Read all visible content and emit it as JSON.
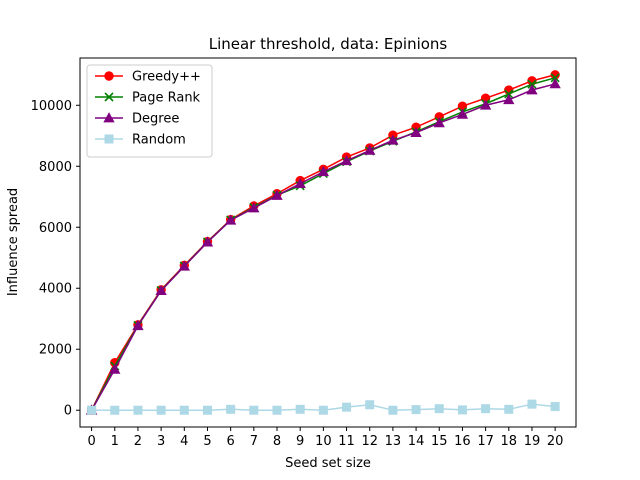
{
  "chart_data": {
    "type": "line",
    "title": "Linear threshold, data: Epinions",
    "xlabel": "Seed set size",
    "ylabel": "Influence spread",
    "x": [
      0,
      1,
      2,
      3,
      4,
      5,
      6,
      7,
      8,
      9,
      10,
      11,
      12,
      13,
      14,
      15,
      16,
      17,
      18,
      19,
      20
    ],
    "xlim": [
      -0.5,
      20.9
    ],
    "ylim": [
      -550,
      11550
    ],
    "yticks": [
      0,
      2000,
      4000,
      6000,
      8000,
      10000
    ],
    "grid": false,
    "legend_position": "top-left",
    "series": [
      {
        "name": "Greedy++",
        "color": "#ff0000",
        "marker": "circle",
        "values": [
          0,
          1560,
          2800,
          3950,
          4750,
          5530,
          6250,
          6700,
          7100,
          7530,
          7900,
          8300,
          8600,
          9020,
          9280,
          9620,
          9970,
          10230,
          10500,
          10800,
          11000
        ]
      },
      {
        "name": "Page Rank",
        "color": "#008000",
        "marker": "x",
        "values": [
          0,
          1450,
          2780,
          3930,
          4730,
          5520,
          6240,
          6650,
          7050,
          7360,
          7760,
          8150,
          8500,
          8820,
          9130,
          9460,
          9780,
          10050,
          10370,
          10690,
          10900
        ]
      },
      {
        "name": "Degree",
        "color": "#800080",
        "marker": "triangle",
        "values": [
          0,
          1340,
          2770,
          3920,
          4720,
          5510,
          6230,
          6630,
          7040,
          7430,
          7820,
          8180,
          8520,
          8850,
          9100,
          9420,
          9700,
          10000,
          10180,
          10500,
          10700
        ]
      },
      {
        "name": "Random",
        "color": "#add8e6",
        "marker": "square",
        "values": [
          0,
          0,
          0,
          0,
          0,
          0,
          30,
          0,
          0,
          30,
          0,
          100,
          180,
          0,
          20,
          50,
          10,
          50,
          30,
          200,
          120
        ]
      }
    ]
  }
}
